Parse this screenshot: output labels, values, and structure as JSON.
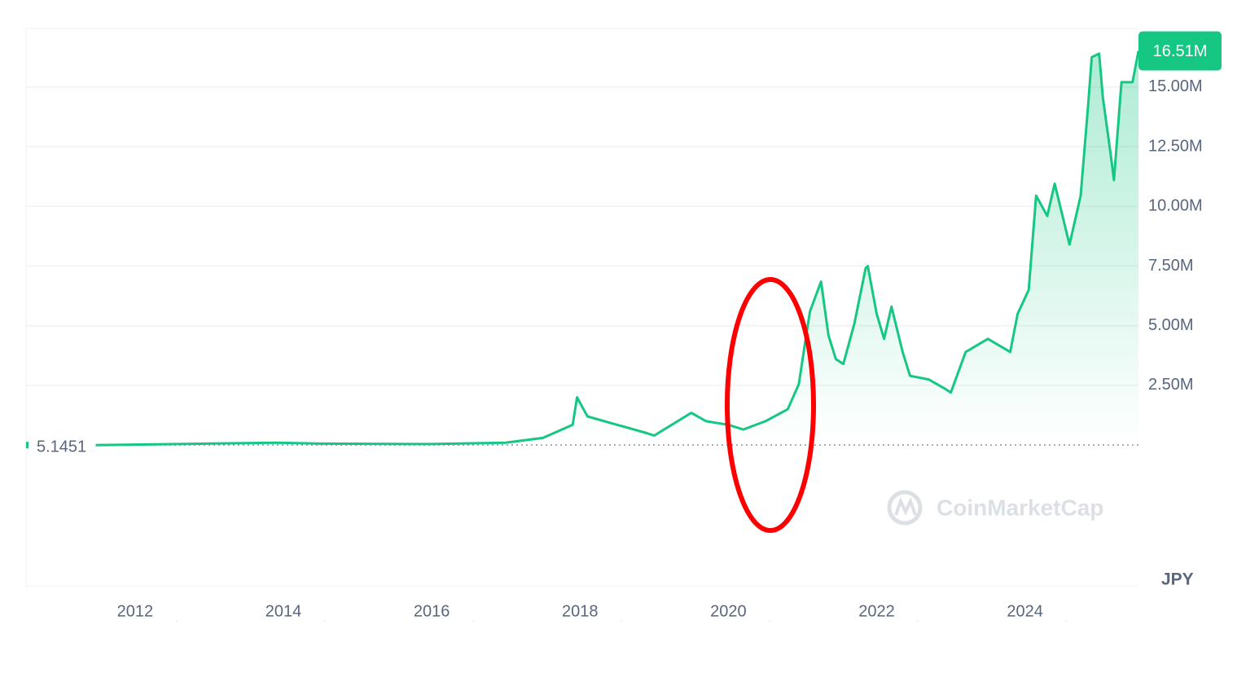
{
  "chart_data": {
    "type": "line",
    "x": [
      2011.47,
      2013.9,
      2014.5,
      2016.0,
      2017.0,
      2017.5,
      2017.9,
      2017.96,
      2018.1,
      2018.5,
      2018.9,
      2019.0,
      2019.5,
      2019.7,
      2020.0,
      2020.2,
      2020.5,
      2020.8,
      2020.95,
      2021.05,
      2021.1,
      2021.25,
      2021.35,
      2021.45,
      2021.55,
      2021.7,
      2021.85,
      2021.88,
      2022.0,
      2022.1,
      2022.2,
      2022.35,
      2022.45,
      2022.7,
      2022.9,
      2023.0,
      2023.2,
      2023.5,
      2023.8,
      2023.9,
      2024.05,
      2024.15,
      2024.3,
      2024.4,
      2024.6,
      2024.75,
      2024.85,
      2024.9,
      2025.0,
      2025.05,
      2025.15,
      2025.2,
      2025.3,
      2025.45,
      2025.53
    ],
    "series": [
      {
        "color": "#16c784",
        "values": [
          500,
          100000,
          60000,
          45000,
          100000,
          300000,
          850000,
          2000000,
          1200000,
          850000,
          500000,
          400000,
          1350000,
          1000000,
          850000,
          650000,
          1000000,
          1500000,
          2550000,
          4600000,
          5600000,
          6850000,
          4600000,
          3600000,
          3400000,
          5100000,
          7400000,
          7500000,
          5500000,
          4450000,
          5800000,
          3900000,
          2900000,
          2750000,
          2400000,
          2200000,
          3900000,
          4450000,
          3900000,
          5500000,
          6500000,
          10450000,
          9600000,
          10950000,
          8400000,
          10450000,
          14200000,
          16250000,
          16400000,
          14550000,
          12300000,
          11100000,
          15200000,
          15200000,
          16510000
        ]
      }
    ],
    "xlim": [
      2010.53,
      2025.53
    ],
    "ylim": [
      -5900000,
      17450000
    ],
    "xticks": [
      2012,
      2014,
      2016,
      2018,
      2020,
      2022,
      2024
    ],
    "yticks": [
      {
        "value": 2500000,
        "label": "2.50M"
      },
      {
        "value": 5000000,
        "label": "5.00M"
      },
      {
        "value": 7500000,
        "label": "7.50M"
      },
      {
        "value": 10000000,
        "label": "10.00M"
      },
      {
        "value": 12500000,
        "label": "12.50M"
      },
      {
        "value": 15000000,
        "label": "15.00M"
      }
    ],
    "grid": true,
    "start_price": {
      "value": 5.1451,
      "label": "5.1451"
    },
    "current_price": {
      "value": 16510000,
      "label": "16.51M"
    },
    "currency": "JPY",
    "watermark": "CoinMarketCap"
  }
}
